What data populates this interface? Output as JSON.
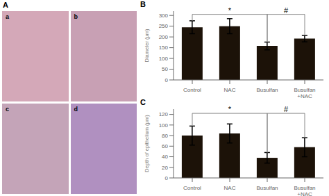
{
  "chart_data": [
    {
      "type": "image",
      "title": "A",
      "annotations": [
        "a",
        "b",
        "c",
        "d"
      ],
      "colors": [
        "#d4a8b8",
        "#c8a0b4",
        "#c4a4b8",
        "#b090c0"
      ]
    },
    {
      "type": "bar",
      "title": "B",
      "ylabel": "Diameter (μm)",
      "categories": [
        "Control",
        "NAC",
        "Busulfan",
        "Busulfan\n+NAC"
      ],
      "values": [
        245,
        250,
        158,
        192
      ],
      "errors": [
        30,
        35,
        18,
        15
      ],
      "color": "#1c1208",
      "ylim": [
        0,
        320
      ],
      "yticks": [
        0,
        50,
        100,
        150,
        200,
        250,
        300
      ],
      "brackets": [
        {
          "from": "Control",
          "to": "Busulfan",
          "y": 305,
          "label": "*",
          "color": "#888888"
        },
        {
          "from": "Busulfan",
          "to": "Busulfan\n+NAC",
          "y": 305,
          "label": "#",
          "color": "#888888"
        }
      ]
    },
    {
      "type": "bar",
      "title": "C",
      "ylabel": "Depth of epithelium (μm)",
      "categories": [
        "Control",
        "NAC",
        "Busulfan",
        "Busulfan\n+NAC"
      ],
      "values": [
        80,
        84,
        38,
        58
      ],
      "errors": [
        18,
        18,
        10,
        18
      ],
      "color": "#1c1208",
      "ylim": [
        0,
        130
      ],
      "yticks": [
        0,
        20,
        40,
        60,
        80,
        100,
        120
      ],
      "brackets": [
        {
          "from": "Control",
          "to": "Busulfan",
          "y": 122,
          "label": "*",
          "color": "#888888"
        },
        {
          "from": "Busulfan",
          "to": "Busulfan\n+NAC",
          "y": 122,
          "label": "#",
          "color": "#888888"
        }
      ]
    }
  ]
}
